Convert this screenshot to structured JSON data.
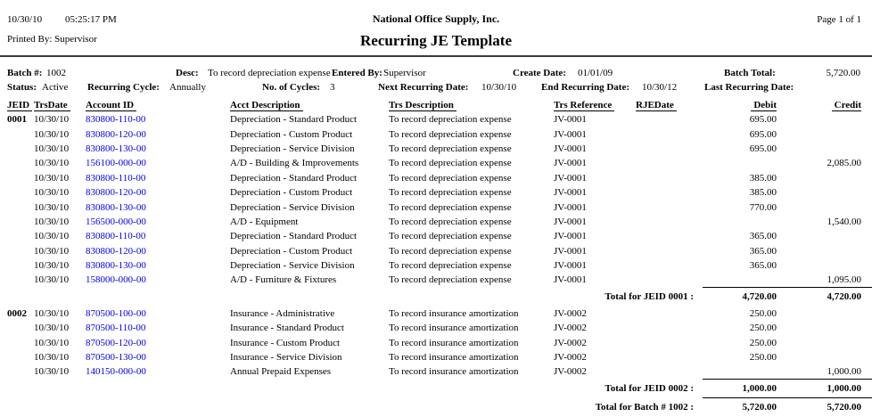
{
  "header": {
    "date": "10/30/10",
    "time": "05:25:17 PM",
    "printed_by": "Printed By: Supervisor",
    "company": "National Office Supply, Inc.",
    "title": "Recurring JE Template",
    "page": "Page 1 of 1"
  },
  "batch_info": {
    "batch_label": "Batch #:",
    "batch_value": "1002",
    "desc_label": "Desc:",
    "desc_value": "To record depreciation expense",
    "entered_by_label": "Entered By:",
    "entered_by_value": "Supervisor",
    "create_date_label": "Create Date:",
    "create_date_value": "01/01/09",
    "batch_total_label": "Batch Total:",
    "batch_total_value": "5,720.00",
    "status_label": "Status:",
    "status_value": "Active",
    "cycle_label": "Recurring Cycle:",
    "cycle_value": "Annually",
    "num_cycles_label": "No. of Cycles:",
    "num_cycles_value": "3",
    "next_date_label": "Next Recurring Date:",
    "next_date_value": "10/30/10",
    "end_date_label": "End Recurring Date:",
    "end_date_value": "10/30/12",
    "last_date_label": "Last Recurring Date:",
    "last_date_value": ""
  },
  "table": {
    "columns": [
      "JEID",
      "TrsDate",
      "Account ID",
      "Acct Description",
      "Trs Description",
      "Trs Reference",
      "RJEDate",
      "Debit",
      "Credit"
    ],
    "link_color": "#0000ee",
    "rows": [
      {
        "type": "entry",
        "jeid": "0001",
        "date": "10/30/10",
        "account": "830800-110-00",
        "acct_desc": "Depreciation - Standard Product",
        "trs_desc": "To record depreciation expense",
        "ref": "JV-0001",
        "rjedate": "",
        "debit": "695.00",
        "credit": ""
      },
      {
        "type": "entry",
        "jeid": "",
        "date": "10/30/10",
        "account": "830800-120-00",
        "acct_desc": "Depreciation - Custom Product",
        "trs_desc": "To record depreciation expense",
        "ref": "JV-0001",
        "rjedate": "",
        "debit": "695.00",
        "credit": ""
      },
      {
        "type": "entry",
        "jeid": "",
        "date": "10/30/10",
        "account": "830800-130-00",
        "acct_desc": "Depreciation - Service Division",
        "trs_desc": "To record depreciation expense",
        "ref": "JV-0001",
        "rjedate": "",
        "debit": "695.00",
        "credit": ""
      },
      {
        "type": "entry",
        "jeid": "",
        "date": "10/30/10",
        "account": "156100-000-00",
        "acct_desc": "A/D - Building & Improvements",
        "trs_desc": "To record depreciation expense",
        "ref": "JV-0001",
        "rjedate": "",
        "debit": "",
        "credit": "2,085.00"
      },
      {
        "type": "entry",
        "jeid": "",
        "date": "10/30/10",
        "account": "830800-110-00",
        "acct_desc": "Depreciation - Standard Product",
        "trs_desc": "To record depreciation expense",
        "ref": "JV-0001",
        "rjedate": "",
        "debit": "385.00",
        "credit": ""
      },
      {
        "type": "entry",
        "jeid": "",
        "date": "10/30/10",
        "account": "830800-120-00",
        "acct_desc": "Depreciation - Custom Product",
        "trs_desc": "To record depreciation expense",
        "ref": "JV-0001",
        "rjedate": "",
        "debit": "385.00",
        "credit": ""
      },
      {
        "type": "entry",
        "jeid": "",
        "date": "10/30/10",
        "account": "830800-130-00",
        "acct_desc": "Depreciation - Service Division",
        "trs_desc": "To record depreciation expense",
        "ref": "JV-0001",
        "rjedate": "",
        "debit": "770.00",
        "credit": ""
      },
      {
        "type": "entry",
        "jeid": "",
        "date": "10/30/10",
        "account": "156500-000-00",
        "acct_desc": "A/D - Equipment",
        "trs_desc": "To record depreciation expense",
        "ref": "JV-0001",
        "rjedate": "",
        "debit": "",
        "credit": "1,540.00"
      },
      {
        "type": "entry",
        "jeid": "",
        "date": "10/30/10",
        "account": "830800-110-00",
        "acct_desc": "Depreciation - Standard Product",
        "trs_desc": "To record depreciation expense",
        "ref": "JV-0001",
        "rjedate": "",
        "debit": "365.00",
        "credit": ""
      },
      {
        "type": "entry",
        "jeid": "",
        "date": "10/30/10",
        "account": "830800-120-00",
        "acct_desc": "Depreciation - Custom Product",
        "trs_desc": "To record depreciation expense",
        "ref": "JV-0001",
        "rjedate": "",
        "debit": "365.00",
        "credit": ""
      },
      {
        "type": "entry",
        "jeid": "",
        "date": "10/30/10",
        "account": "830800-130-00",
        "acct_desc": "Depreciation - Service Division",
        "trs_desc": "To record depreciation expense",
        "ref": "JV-0001",
        "rjedate": "",
        "debit": "365.00",
        "credit": ""
      },
      {
        "type": "entry",
        "jeid": "",
        "date": "10/30/10",
        "account": "158000-000-00",
        "acct_desc": "A/D - Furniture & Fixtures",
        "trs_desc": "To record depreciation expense",
        "ref": "JV-0001",
        "rjedate": "",
        "debit": "",
        "credit": "1,095.00"
      },
      {
        "type": "total",
        "label": "Total for JEID 0001 :",
        "debit": "4,720.00",
        "credit": "4,720.00"
      },
      {
        "type": "entry",
        "jeid": "0002",
        "date": "10/30/10",
        "account": "870500-100-00",
        "acct_desc": "Insurance - Administrative",
        "trs_desc": "To record insurance amortization",
        "ref": "JV-0002",
        "rjedate": "",
        "debit": "250.00",
        "credit": ""
      },
      {
        "type": "entry",
        "jeid": "",
        "date": "10/30/10",
        "account": "870500-110-00",
        "acct_desc": "Insurance - Standard Product",
        "trs_desc": "To record insurance amortization",
        "ref": "JV-0002",
        "rjedate": "",
        "debit": "250.00",
        "credit": ""
      },
      {
        "type": "entry",
        "jeid": "",
        "date": "10/30/10",
        "account": "870500-120-00",
        "acct_desc": "Insurance - Custom Product",
        "trs_desc": "To record insurance amortization",
        "ref": "JV-0002",
        "rjedate": "",
        "debit": "250.00",
        "credit": ""
      },
      {
        "type": "entry",
        "jeid": "",
        "date": "10/30/10",
        "account": "870500-130-00",
        "acct_desc": "Insurance - Service Division",
        "trs_desc": "To record insurance amortization",
        "ref": "JV-0002",
        "rjedate": "",
        "debit": "250.00",
        "credit": ""
      },
      {
        "type": "entry",
        "jeid": "",
        "date": "10/30/10",
        "account": "140150-000-00",
        "acct_desc": "Annual Prepaid Expenses",
        "trs_desc": "To record insurance amortization",
        "ref": "JV-0002",
        "rjedate": "",
        "debit": "",
        "credit": "1,000.00"
      },
      {
        "type": "total",
        "label": "Total for JEID 0002 :",
        "debit": "1,000.00",
        "credit": "1,000.00"
      },
      {
        "type": "total",
        "label": "Total for Batch # 1002 :",
        "debit": "5,720.00",
        "credit": "5,720.00"
      }
    ]
  }
}
